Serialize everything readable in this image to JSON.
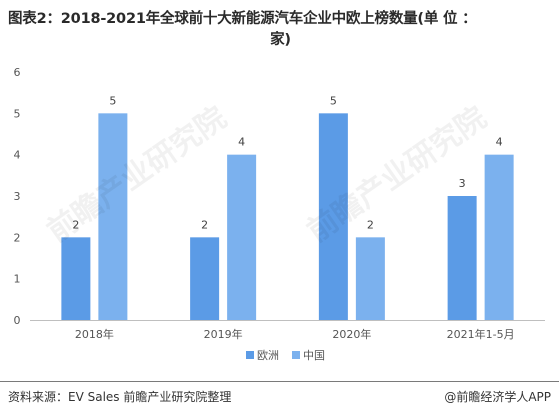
{
  "title_line1": "图表2：2018-2021年全球前十大新能源汽车企业中欧上榜数量(单 位 ：",
  "title_line2": "家)",
  "chart_data": {
    "type": "bar",
    "categories": [
      "2018年",
      "2019年",
      "2020年",
      "2021年1-5月"
    ],
    "series": [
      {
        "name": "欧洲",
        "values": [
          2,
          2,
          5,
          3
        ],
        "color": "#5b9be6"
      },
      {
        "name": "中国",
        "values": [
          5,
          4,
          2,
          4
        ],
        "color": "#7bb1ee"
      }
    ],
    "ylim": [
      0,
      6
    ],
    "yticks": [
      0,
      1,
      2,
      3,
      4,
      5,
      6
    ],
    "legend": "bottom-center",
    "grid": false
  },
  "footer": {
    "source": "资料来源：EV Sales 前瞻产业研究院整理",
    "credit": "@前瞻经济学人APP"
  },
  "watermark": {
    "text": "前瞻产业研究院"
  }
}
